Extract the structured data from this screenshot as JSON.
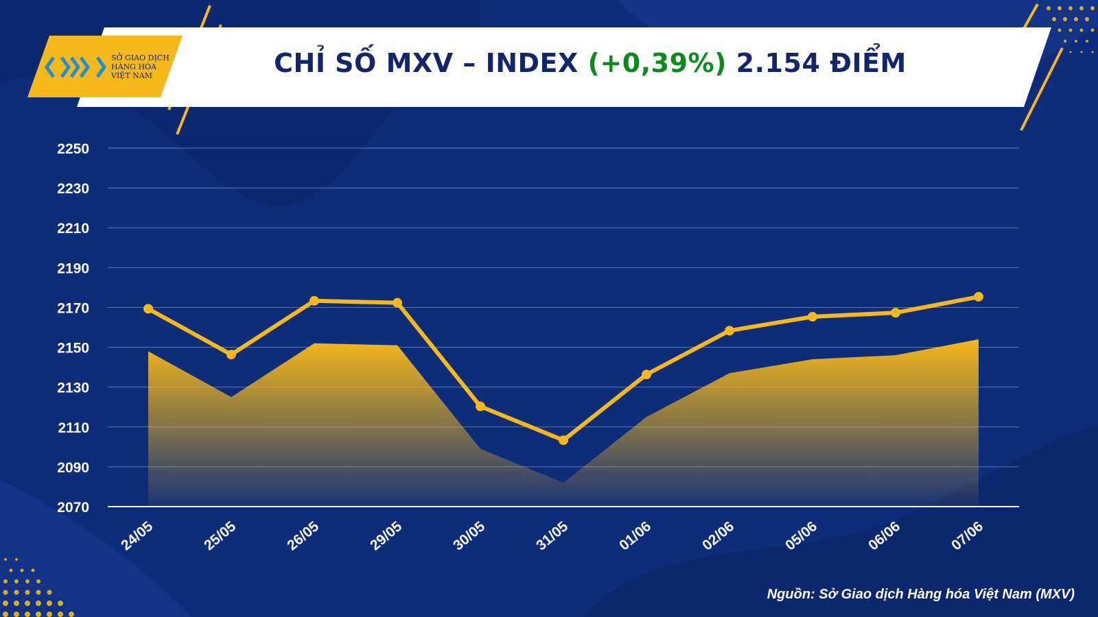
{
  "header": {
    "title_prefix": "CHỈ SỐ MXV – INDEX ",
    "title_change": "(+0,39%)",
    "title_suffix": " 2.154 ĐIỂM"
  },
  "logo": {
    "line1": "SỞ GIAO DỊCH",
    "line2": "HÀNG HÓA",
    "line3": "VIỆT NAM"
  },
  "source": "Nguồn: Sở Giao dịch Hàng hóa Việt Nam (MXV)",
  "colors": {
    "background": "#0d2c7a",
    "line": "#f6b81a",
    "change_positive": "#0c8a1e",
    "title": "#13256b"
  },
  "chart_data": {
    "type": "line",
    "categories": [
      "24/05",
      "25/05",
      "26/05",
      "29/05",
      "30/05",
      "31/05",
      "01/06",
      "02/06",
      "05/06",
      "06/06",
      "07/06"
    ],
    "values": [
      2148,
      2125,
      2152,
      2151,
      2099,
      2082,
      2115,
      2137,
      2144,
      2146,
      2154
    ],
    "yticks": [
      2070,
      2090,
      2110,
      2130,
      2150,
      2170,
      2190,
      2210,
      2230,
      2250
    ],
    "ylim": [
      2070,
      2250
    ],
    "grid": true,
    "area_fill": true
  }
}
